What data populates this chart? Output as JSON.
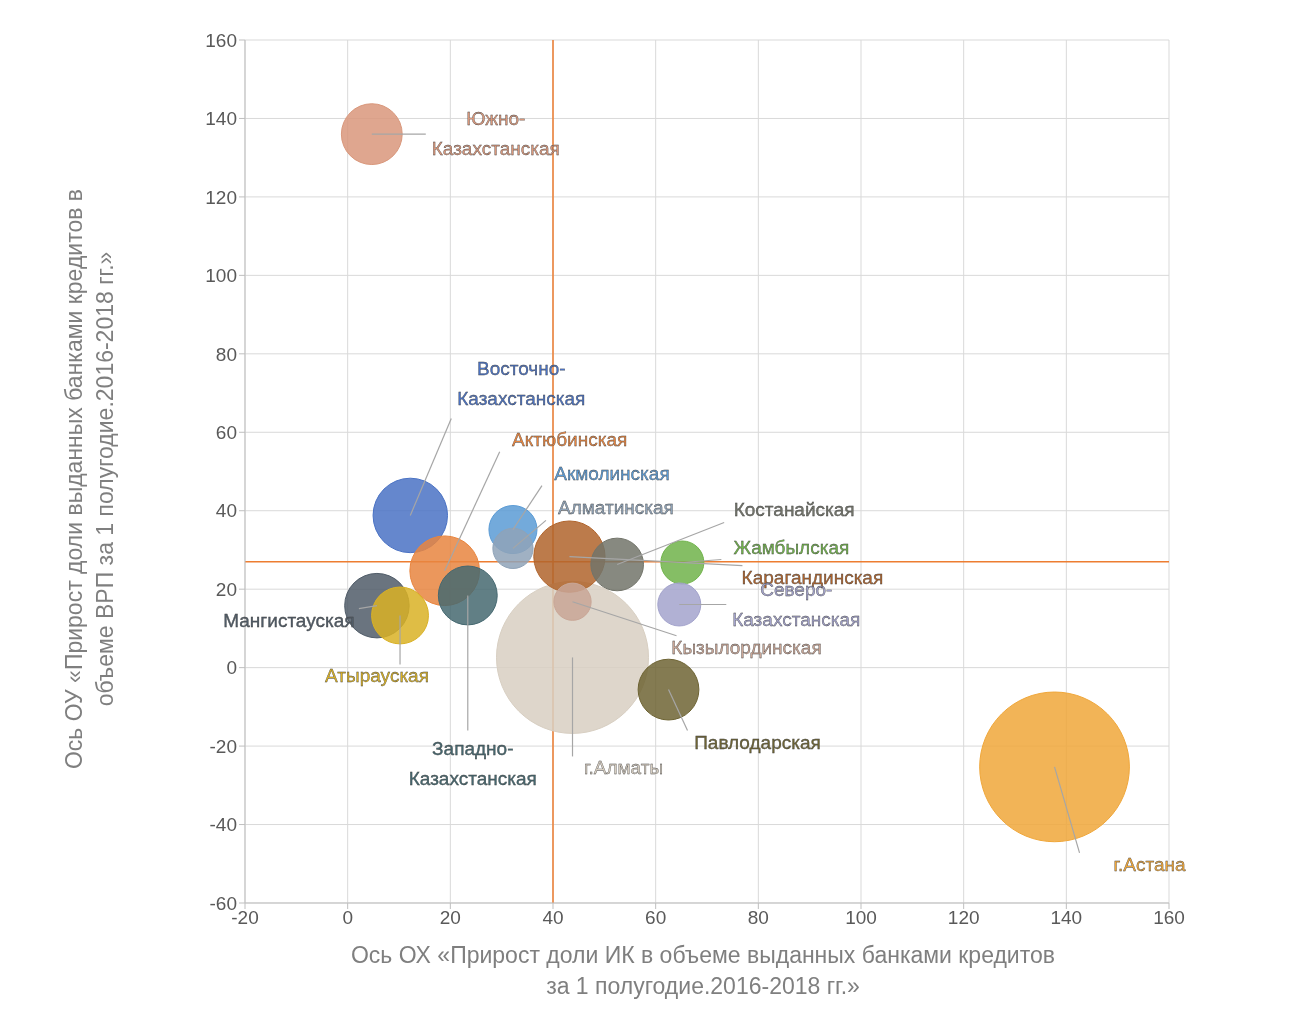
{
  "chart_data": {
    "type": "bubble",
    "xlabel": "Ось ОХ «Прирост доли ИК в объеме выданных банками кредитов за 1 полугодие.2016-2018 гг.»",
    "ylabel": "Ось ОУ «Прирост доли выданных банками кредитов в объеме ВРП за 1 полугодие.2016-2018 гг.»",
    "xlim": [
      -20,
      160
    ],
    "xticks": [
      -20,
      0,
      20,
      40,
      60,
      80,
      100,
      120,
      140,
      160
    ],
    "ylim": [
      -60,
      160
    ],
    "yticks": [
      -60,
      -40,
      -20,
      0,
      20,
      40,
      60,
      80,
      100,
      120,
      140,
      160
    ],
    "grid": true,
    "legend": false,
    "ref_lines": [
      {
        "axis": "x",
        "value": 40,
        "color": "#ed7d31"
      },
      {
        "axis": "y",
        "value": 27,
        "color": "#ed7d31"
      }
    ],
    "series": [
      {
        "name": "г.Алматы",
        "color": "#d8cfc2",
        "x": [
          43.8
        ],
        "values": [
          2.6
        ],
        "sizes": [
          1
        ]
      },
      {
        "name": "г.Астана",
        "color": "#f0a73a",
        "x": [
          137.7
        ],
        "values": [
          -25.3
        ],
        "sizes": [
          0.97
        ]
      },
      {
        "name": "Южно-Казахстанская",
        "color": "#d9977b",
        "x": [
          4.7
        ],
        "values": [
          136
        ],
        "sizes": [
          0.16
        ]
      },
      {
        "name": "Восточно-Казахстанская",
        "color": "#4a72c4",
        "x": [
          12.2
        ],
        "values": [
          38.8
        ],
        "sizes": [
          0.24
        ]
      },
      {
        "name": "Актюбинская",
        "color": "#e8853f",
        "x": [
          18.9
        ],
        "values": [
          24.7
        ],
        "sizes": [
          0.21
        ]
      },
      {
        "name": "Акмолинская",
        "color": "#5b9bd5",
        "x": [
          32.2
        ],
        "values": [
          35.2
        ],
        "sizes": [
          0.1
        ]
      },
      {
        "name": "Алматинская",
        "color": "#8fa3b8",
        "x": [
          32.2
        ],
        "values": [
          30.4
        ],
        "sizes": [
          0.07
        ]
      },
      {
        "name": "Карагандинская",
        "color": "#b0642c",
        "x": [
          43.2
        ],
        "values": [
          28.3
        ],
        "sizes": [
          0.22
        ]
      },
      {
        "name": "Костанайская",
        "color": "#72746a",
        "x": [
          52.5
        ],
        "values": [
          26.3
        ],
        "sizes": [
          0.12
        ]
      },
      {
        "name": "Жамбылская",
        "color": "#70b34a",
        "x": [
          65.2
        ],
        "values": [
          26.8
        ],
        "sizes": [
          0.08
        ]
      },
      {
        "name": "Северо-Казахстанская",
        "color": "#a3a3cc",
        "x": [
          64.6
        ],
        "values": [
          16.1
        ],
        "sizes": [
          0.08
        ]
      },
      {
        "name": "Кызылординская",
        "color": "#c9a696",
        "x": [
          43.8
        ],
        "values": [
          16.8
        ],
        "sizes": [
          0.06
        ]
      },
      {
        "name": "Мангистауская",
        "color": "#505c68",
        "x": [
          5.7
        ],
        "values": [
          15.8
        ],
        "sizes": [
          0.18
        ]
      },
      {
        "name": "Атырауская",
        "color": "#d9b125",
        "x": [
          10.2
        ],
        "values": [
          13.3
        ],
        "sizes": [
          0.14
        ]
      },
      {
        "name": "Западно-Казахстанская",
        "color": "#456870",
        "x": [
          23.4
        ],
        "values": [
          18.4
        ],
        "sizes": [
          0.15
        ]
      },
      {
        "name": "Павлодарская",
        "color": "#6e6434",
        "x": [
          62.5
        ],
        "values": [
          -5.6
        ],
        "sizes": [
          0.16
        ]
      }
    ]
  }
}
